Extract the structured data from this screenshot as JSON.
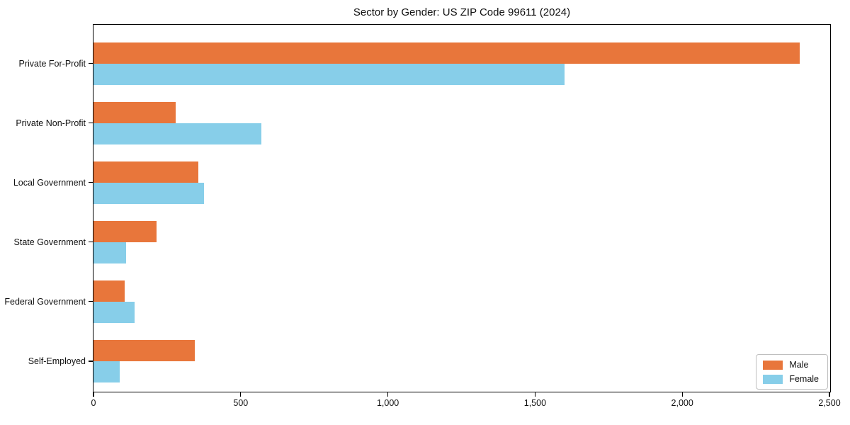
{
  "title": "Sector by Gender: US ZIP Code 99611 (2024)",
  "chart_data": {
    "type": "bar",
    "orientation": "horizontal",
    "title": "Sector by Gender: US ZIP Code 99611 (2024)",
    "categories": [
      "Private For-Profit",
      "Private Non-Profit",
      "Local Government",
      "State Government",
      "Federal Government",
      "Self-Employed"
    ],
    "series": [
      {
        "name": "Male",
        "color": "#E8763B",
        "values": [
          2400,
          280,
          355,
          215,
          105,
          345
        ]
      },
      {
        "name": "Female",
        "color": "#87CEE9",
        "values": [
          1600,
          570,
          375,
          110,
          140,
          90
        ]
      }
    ],
    "xlabel": "",
    "ylabel": "",
    "xlim": [
      0,
      2500
    ],
    "xticks": [
      0,
      500,
      1000,
      1500,
      2000,
      2500
    ],
    "grid": false,
    "legend_position": "lower right",
    "background_color": "#ffffff",
    "frame_color": "#000000"
  }
}
